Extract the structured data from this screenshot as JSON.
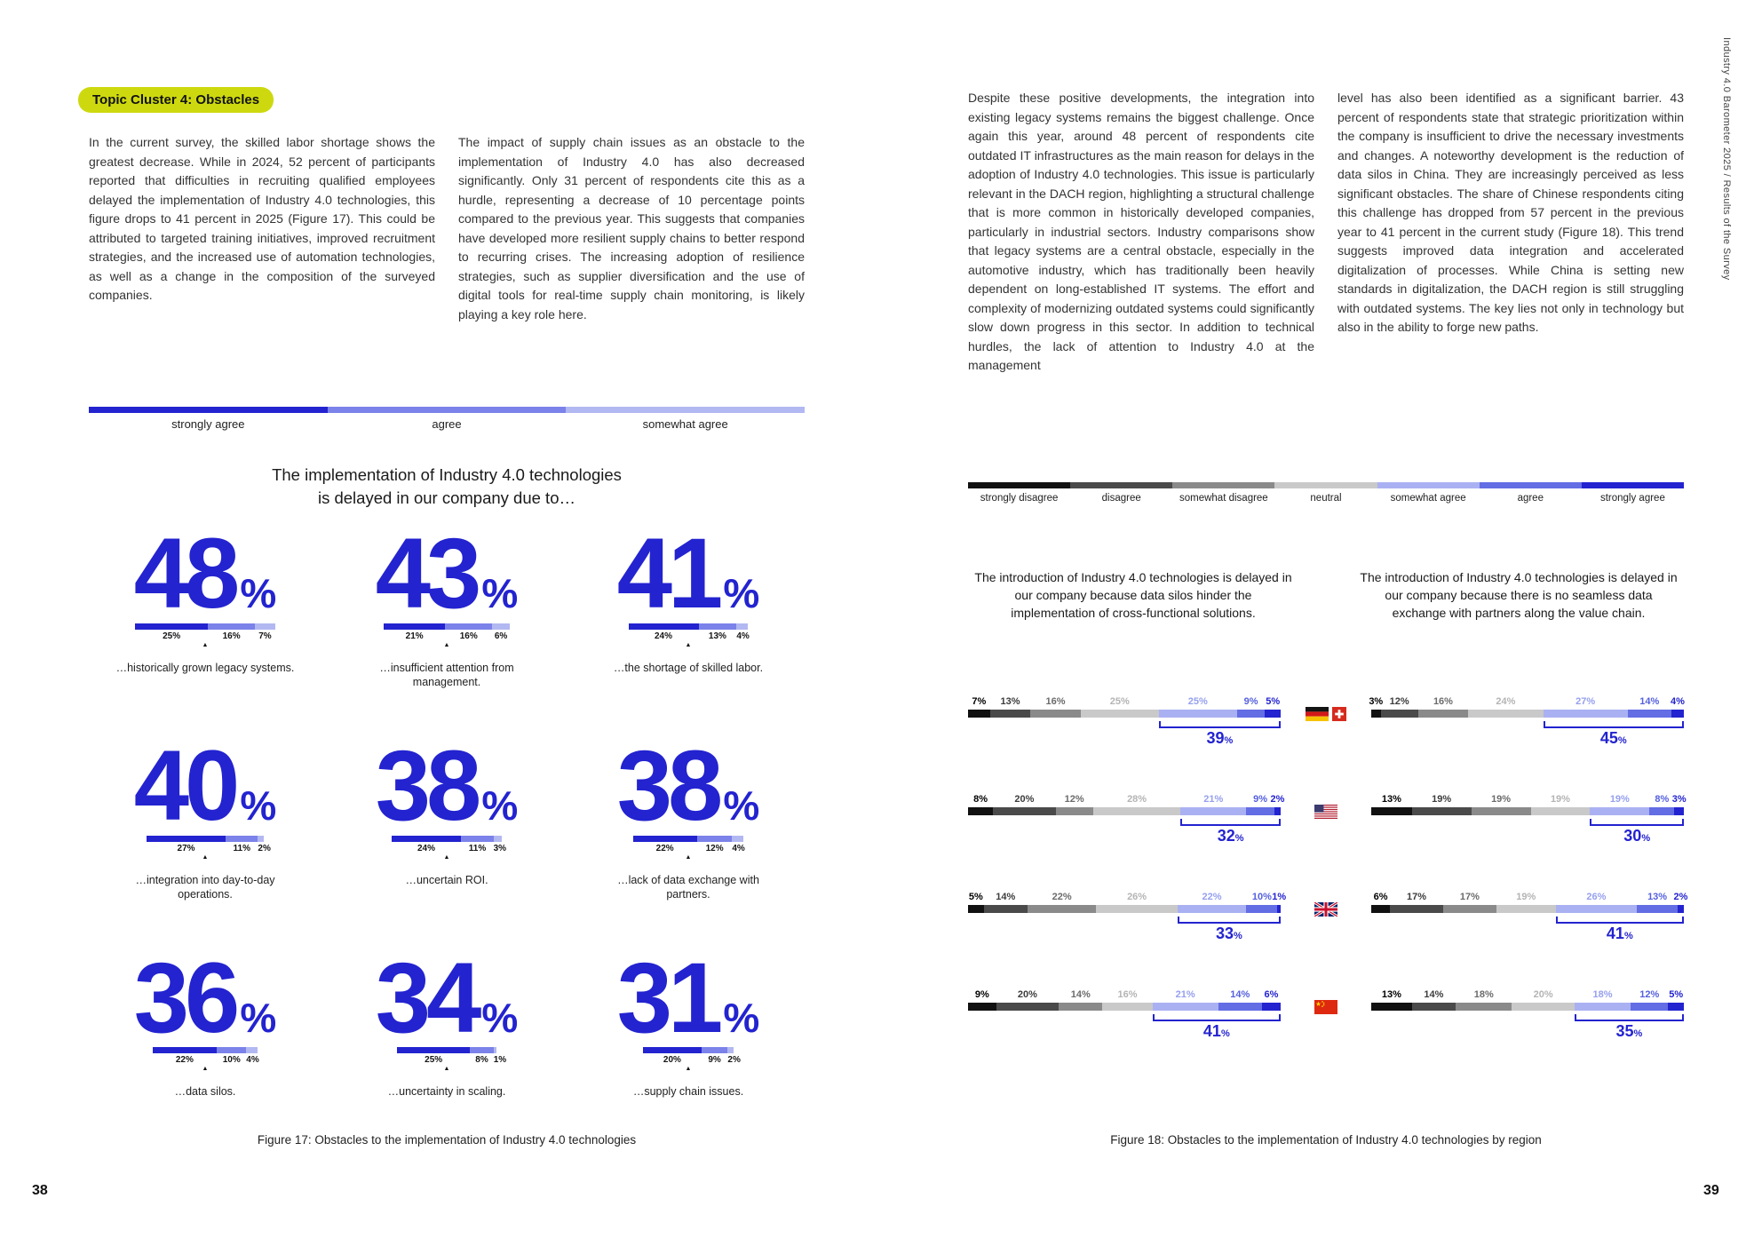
{
  "document": {
    "sidebar_text": "Industry 4.0 Barometer 2025  /  Results of the Survey",
    "left_page_number": "38",
    "right_page_number": "39"
  },
  "left_page": {
    "topic_label": "Topic Cluster 4: Obstacles",
    "column1": "In the current survey, the skilled labor shortage shows the greatest decrease. While in 2024, 52 percent of participants reported that difficulties in recruiting qualified employees delayed the implementation of Industry 4.0 technologies, this figure drops to 41 percent in 2025 (Figure 17). This could be attributed to targeted training initiatives, improved recruitment strategies, and the increased use of automation technologies, as well as a change in the composition of the surveyed companies.",
    "column2": "The impact of supply chain issues as an obstacle to the implementation of Industry 4.0 has also decreased significantly. Only 31 percent of respondents cite this as a hurdle, representing a decrease of 10 percentage points compared to the previous year. This suggests that companies have developed more resilient supply chains to better respond to recurring crises. The increasing adoption of resilience strategies, such as supplier diversification and the use of digital tools for real-time supply chain monitoring, is likely playing a key role here.",
    "figure_caption": "Figure 17: Obstacles to the implementation of Industry 4.0 technologies"
  },
  "right_page": {
    "column1": "Despite these positive developments, the integration into existing legacy systems remains the biggest challenge. Once again this year, around 48 percent of respondents cite outdated IT infrastructures as the main reason for delays in the adoption of Industry 4.0 technologies. This issue is particularly relevant in the DACH region, highlighting a structural challenge that is more common in historically developed companies, particularly in industrial sectors. Industry comparisons show that legacy systems are a central obstacle, especially in the automotive industry, which has traditionally been heavily dependent on long-established IT systems. The effort and complexity of modernizing outdated systems could significantly slow down progress in this sector. In addition to technical hurdles, the lack of attention to Industry 4.0 at the management",
    "column2": "level has also been identified as a significant barrier. 43 percent of respondents state that strategic prioritization within the company is insufficient to drive the necessary investments and changes. A noteworthy development is the reduction of data silos in China. They are increasingly perceived as less significant obstacles. The share of Chinese respondents citing this challenge has dropped from 57 percent in the previous year to 41 percent in the current study (Figure 18). This trend suggests improved data integration and accelerated digitalization of processes. While China is setting new standards in digitalization, the DACH region is still struggling with outdated systems. The key lies not only in technology but also in the ability to forge new paths.",
    "figure_caption": "Figure 18: Obstacles to the implementation of Industry 4.0 technologies by region"
  },
  "chart_data": [
    {
      "type": "bar",
      "title": "The implementation of Industry 4.0 technologies is delayed in our company due to…",
      "title_lines": [
        "The implementation of Industry 4.0 technologies",
        "is delayed in our company due to…"
      ],
      "legend": [
        "strongly agree",
        "agree",
        "somewhat agree"
      ],
      "legend_colors": [
        "#2323d0",
        "#7b82e9",
        "#b2b8f1"
      ],
      "items": [
        {
          "total": 48,
          "segments": [
            25,
            16,
            7
          ],
          "label": "…historically grown legacy systems."
        },
        {
          "total": 43,
          "segments": [
            21,
            16,
            6
          ],
          "label": "…insufficient attention from management."
        },
        {
          "total": 41,
          "segments": [
            24,
            13,
            4
          ],
          "label": "…the shortage of skilled labor."
        },
        {
          "total": 40,
          "segments": [
            27,
            11,
            2
          ],
          "label": "…integration into day-to-day operations."
        },
        {
          "total": 38,
          "segments": [
            24,
            11,
            3
          ],
          "label": "…uncertain ROI."
        },
        {
          "total": 38,
          "segments": [
            22,
            12,
            4
          ],
          "label": "…lack of data exchange with partners."
        },
        {
          "total": 36,
          "segments": [
            22,
            10,
            4
          ],
          "label": "…data silos."
        },
        {
          "total": 34,
          "segments": [
            25,
            8,
            1
          ],
          "label": "…uncertainty in scaling."
        },
        {
          "total": 31,
          "segments": [
            20,
            9,
            2
          ],
          "label": "…supply chain issues."
        }
      ]
    },
    {
      "type": "bar",
      "legend": [
        "strongly disagree",
        "disagree",
        "somewhat disagree",
        "neutral",
        "somewhat agree",
        "agree",
        "strongly agree"
      ],
      "legend_colors": [
        "#111111",
        "#4a4a4a",
        "#8a8a8a",
        "#c9c9c9",
        "#aab1f2",
        "#636de4",
        "#2323d0"
      ],
      "label_colors": [
        "#000000",
        "#3c3c3c",
        "#6b6b6b",
        "#b4b4b4",
        "#96a0ee",
        "#5560de",
        "#2323d0"
      ],
      "question_left": "The introduction of Industry 4.0 technologies is delayed in our company because data silos hinder the implementation of cross-functional solutions.",
      "question_right": "The introduction of Industry 4.0 technologies is delayed in our company because there is no seamless data exchange with partners along the value chain.",
      "rows": [
        {
          "region": "DACH",
          "flags": [
            "germany",
            "switzerland"
          ],
          "left_values": [
            7,
            13,
            16,
            25,
            25,
            9,
            5
          ],
          "left_agree_total": 39,
          "right_values": [
            3,
            12,
            16,
            24,
            27,
            14,
            4
          ],
          "right_agree_total": 45
        },
        {
          "region": "USA",
          "flags": [
            "usa"
          ],
          "left_values": [
            8,
            20,
            12,
            28,
            21,
            9,
            2
          ],
          "left_agree_total": 32,
          "right_values": [
            13,
            19,
            19,
            19,
            19,
            8,
            3
          ],
          "right_agree_total": 30
        },
        {
          "region": "UK",
          "flags": [
            "uk"
          ],
          "left_values": [
            5,
            14,
            22,
            26,
            22,
            10,
            1
          ],
          "left_agree_total": 33,
          "right_values": [
            6,
            17,
            17,
            19,
            26,
            13,
            2
          ],
          "right_agree_total": 41
        },
        {
          "region": "China",
          "flags": [
            "china"
          ],
          "left_values": [
            9,
            20,
            14,
            16,
            21,
            14,
            6
          ],
          "left_agree_total": 41,
          "right_values": [
            13,
            14,
            18,
            20,
            18,
            12,
            5
          ],
          "right_agree_total": 35
        }
      ]
    }
  ]
}
